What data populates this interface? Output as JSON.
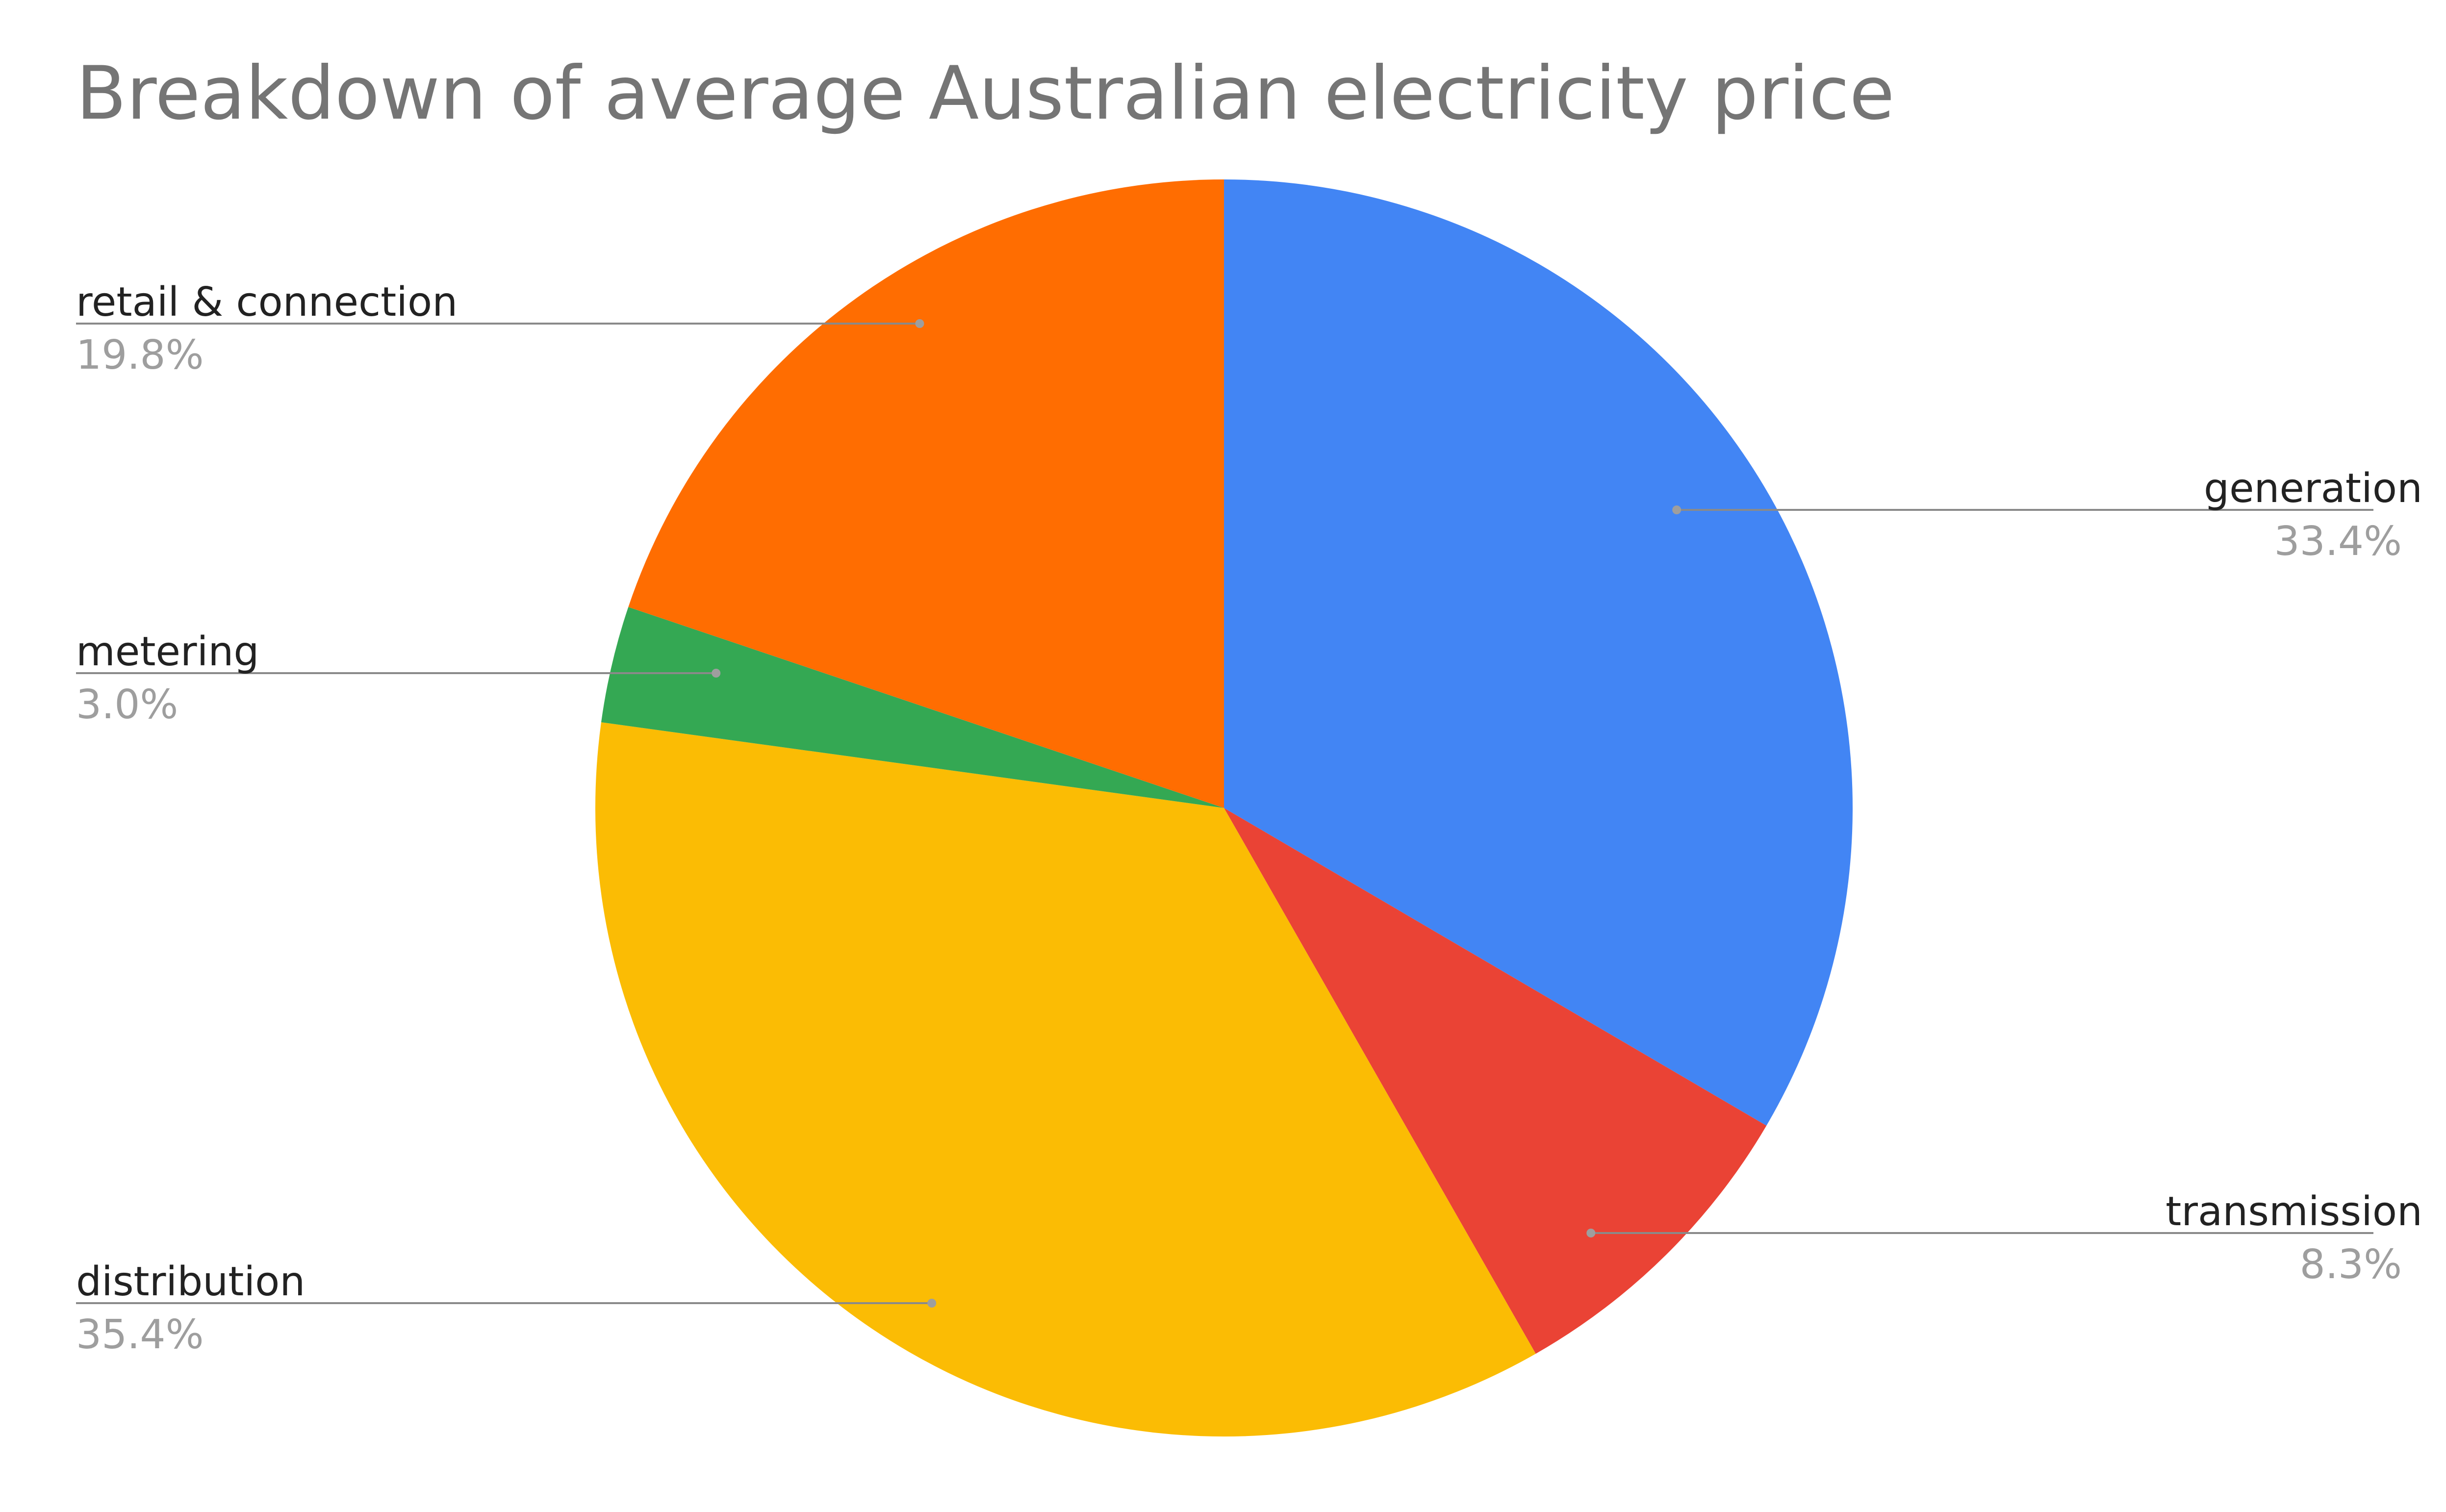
{
  "chart_data": {
    "type": "pie",
    "title": "Breakdown of average Australian electricity price",
    "slices": [
      {
        "label": "generation",
        "value": 33.4,
        "display": "33.4%",
        "color": "#4285F4"
      },
      {
        "label": "transmission",
        "value": 8.3,
        "display": "8.3%",
        "color": "#EA4335"
      },
      {
        "label": "distribution",
        "value": 35.4,
        "display": "35.4%",
        "color": "#FBBC04"
      },
      {
        "label": "metering",
        "value": 3.0,
        "display": "3.0%",
        "color": "#34A853"
      },
      {
        "label": "retail & connection",
        "value": 19.8,
        "display": "19.8%",
        "color": "#FF6D01"
      }
    ],
    "legend": "labels beside slices"
  }
}
